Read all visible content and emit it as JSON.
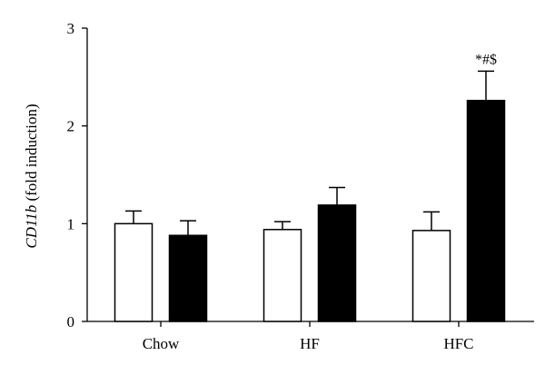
{
  "chart_data": {
    "type": "bar",
    "title": "",
    "xlabel": "",
    "ylabel_italic": "CD11b",
    "ylabel_rest": " (fold induction)",
    "categories": [
      "Chow",
      "HF",
      "HFC"
    ],
    "ylim": [
      0,
      3
    ],
    "yticks": [
      "0",
      "1",
      "2",
      "3"
    ],
    "grid": false,
    "legend": "none",
    "series": [
      {
        "fill": "#ffffff",
        "values": [
          1.0,
          0.94,
          0.93
        ],
        "errors": [
          0.13,
          0.08,
          0.19
        ]
      },
      {
        "fill": "#000000",
        "values": [
          0.88,
          1.19,
          2.26
        ],
        "errors": [
          0.15,
          0.18,
          0.3
        ]
      }
    ],
    "annotations": [
      {
        "category": "HFC",
        "series": 1,
        "text": "*#$"
      }
    ]
  }
}
